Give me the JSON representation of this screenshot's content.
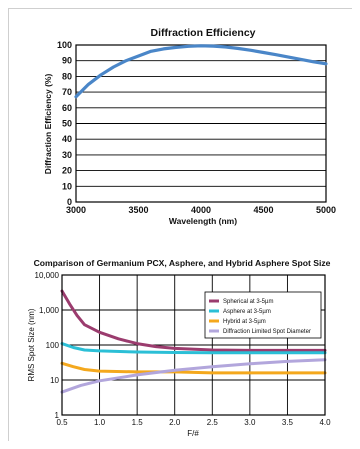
{
  "chart_data": [
    {
      "type": "line",
      "title": "Diffraction Efficiency",
      "xlabel": "Wavelength (nm)",
      "ylabel": "Diffraction Efficiency (%)",
      "xlim": [
        3000,
        5000
      ],
      "ylim": [
        0,
        100
      ],
      "xticks": [
        3000,
        3500,
        4000,
        4500,
        5000
      ],
      "yticks": [
        0,
        10,
        20,
        30,
        40,
        50,
        60,
        70,
        80,
        90,
        100
      ],
      "grid": "horizontal",
      "series": [
        {
          "color": "#4a86c8",
          "x": [
            3000,
            3100,
            3200,
            3300,
            3400,
            3500,
            3600,
            3700,
            3800,
            3900,
            4000,
            4100,
            4200,
            4300,
            4400,
            4500,
            4600,
            4700,
            4800,
            4900,
            5000
          ],
          "y": [
            67,
            75,
            81,
            86,
            90,
            93,
            96,
            97.5,
            98.5,
            99.2,
            99.5,
            99.3,
            98.7,
            97.8,
            96.6,
            95.2,
            93.8,
            92.3,
            90.8,
            89.3,
            88
          ]
        }
      ]
    },
    {
      "type": "line",
      "title": "Comparison of Germanium PCX, Asphere, and Hybrid Asphere Spot Size",
      "xlabel": "F/#",
      "ylabel": "RMS Spot Size (nm)",
      "xscale": "linear",
      "yscale": "log",
      "xlim": [
        0.5,
        4.0
      ],
      "ylim": [
        1,
        10000
      ],
      "xticks": [
        "0.5",
        "1.0",
        "1.5",
        "2.0",
        "2.5",
        "3.0",
        "3.5",
        "4.0"
      ],
      "yticks": [
        "1",
        "10",
        "100",
        "1,000",
        "10,000"
      ],
      "grid": "both",
      "legend": "top-right",
      "series": [
        {
          "name": "Spherical at 3-5µm",
          "color": "#9b3c6e",
          "x": [
            0.5,
            0.6,
            0.7,
            0.8,
            1.0,
            1.25,
            1.5,
            1.75,
            2.0,
            2.5,
            3.0,
            3.5,
            4.0
          ],
          "y": [
            3500,
            1500,
            700,
            380,
            230,
            150,
            110,
            90,
            80,
            72,
            70,
            70,
            70
          ]
        },
        {
          "name": "Asphere at 3-5µm",
          "color": "#2bbfd6",
          "x": [
            0.5,
            0.65,
            0.8,
            1.0,
            1.5,
            2.0,
            2.5,
            3.0,
            3.5,
            4.0
          ],
          "y": [
            110,
            85,
            72,
            68,
            63,
            61,
            60,
            60,
            60,
            60
          ]
        },
        {
          "name": "Hybrid at 3-5µm",
          "color": "#f4a81d",
          "x": [
            0.5,
            0.65,
            0.8,
            1.0,
            1.5,
            2.0,
            2.5,
            3.0,
            3.5,
            4.0
          ],
          "y": [
            30,
            24,
            20,
            18,
            17,
            17,
            16,
            16,
            16,
            16
          ]
        },
        {
          "name": "Diffraction Limited Spot Diameter",
          "color": "#b2a6dc",
          "x": [
            0.5,
            0.75,
            1.0,
            1.5,
            2.0,
            2.5,
            3.0,
            3.5,
            4.0
          ],
          "y": [
            4.5,
            7,
            9.5,
            14,
            19,
            24,
            29,
            34,
            38
          ]
        }
      ]
    }
  ]
}
